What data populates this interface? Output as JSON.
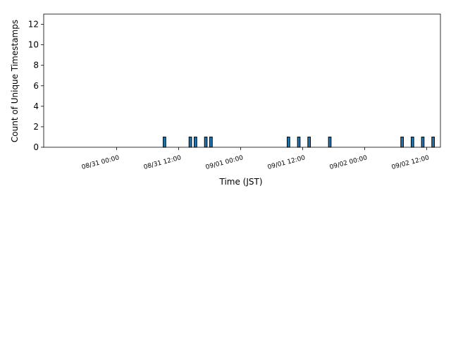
{
  "chart_data": {
    "type": "bar",
    "title": "",
    "xlabel": "Time (JST)",
    "ylabel": "Count of Unique Timestamps",
    "bar_color": "#1f77b4",
    "edge_color": "#000000",
    "xlim": [
      "08/30 09:52",
      "09/02 14:40"
    ],
    "ylim": [
      0,
      13
    ],
    "yticks": [
      0,
      2,
      4,
      6,
      8,
      10,
      12
    ],
    "xticks": [
      "08/31 00:00",
      "08/31 12:00",
      "09/01 00:00",
      "09/01 12:00",
      "09/02 00:00",
      "09/02 12:00"
    ],
    "grid": false,
    "bars": [
      {
        "x": "08/31 09:15",
        "value": 1
      },
      {
        "x": "08/31 14:15",
        "value": 1
      },
      {
        "x": "08/31 15:15",
        "value": 1
      },
      {
        "x": "08/31 17:15",
        "value": 1
      },
      {
        "x": "08/31 18:15",
        "value": 1
      },
      {
        "x": "09/01 09:15",
        "value": 1
      },
      {
        "x": "09/01 11:15",
        "value": 1
      },
      {
        "x": "09/01 13:15",
        "value": 1
      },
      {
        "x": "09/01 17:15",
        "value": 1
      },
      {
        "x": "09/02 07:15",
        "value": 1
      },
      {
        "x": "09/02 09:15",
        "value": 1
      },
      {
        "x": "09/02 11:15",
        "value": 1
      },
      {
        "x": "09/02 13:15",
        "value": 1
      }
    ]
  }
}
